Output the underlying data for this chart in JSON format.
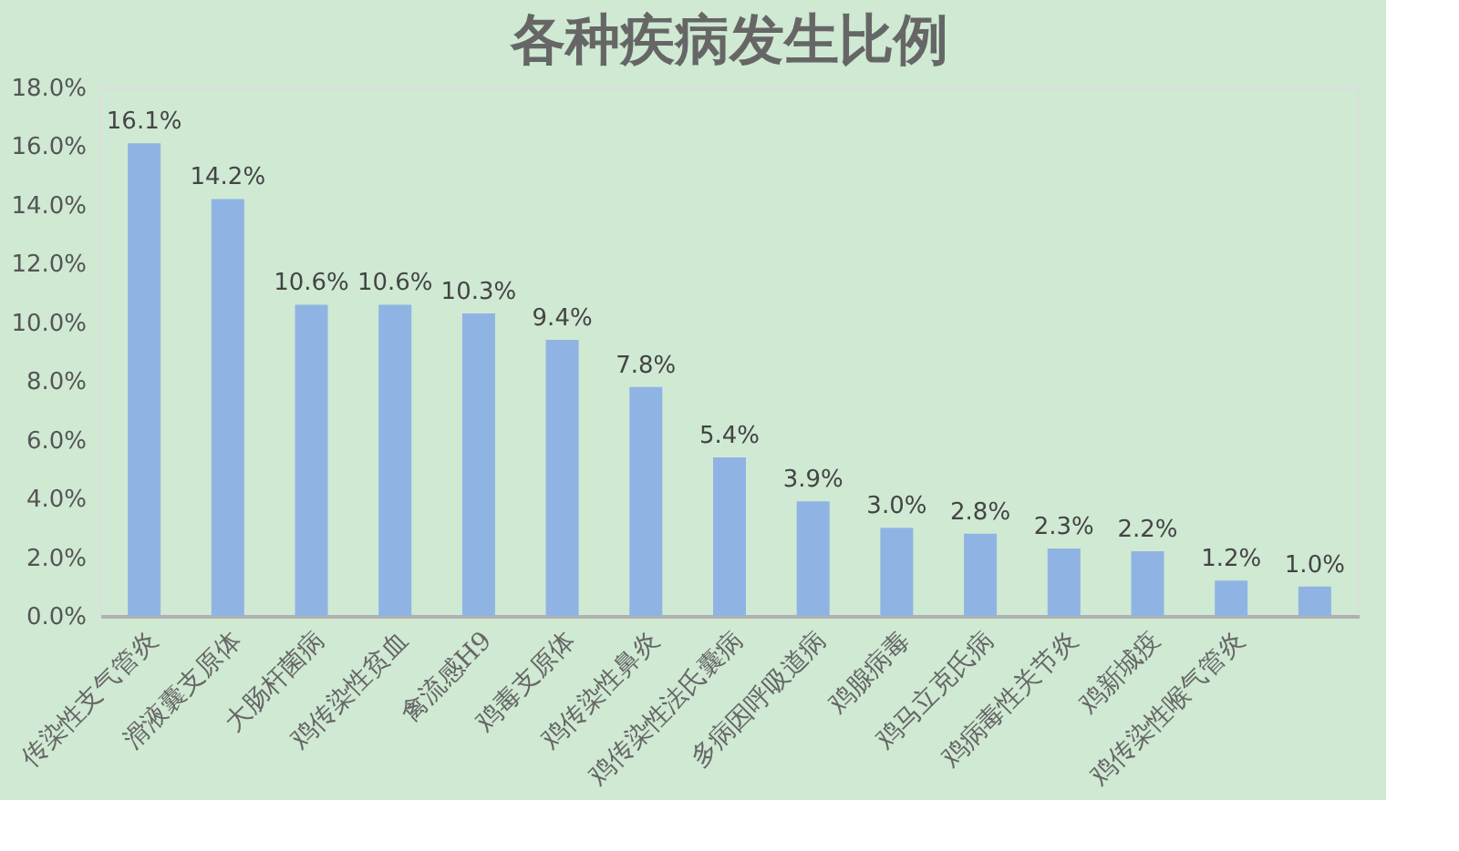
{
  "chart_data": {
    "type": "bar",
    "title": "各种疾病发生比例",
    "categories": [
      "传染性支气管炎",
      "滑液囊支原体",
      "大肠杆菌病",
      "鸡传染性贫血",
      "禽流感H9",
      "鸡毒支原体",
      "鸡传染性鼻炎",
      "鸡传染性法氏囊病",
      "多病因呼吸道病",
      "鸡腺病毒",
      "鸡马立克氏病",
      "鸡病毒性关节炎",
      "鸡新城疫",
      "鸡传染性喉气管炎",
      null
    ],
    "values": [
      16.1,
      14.2,
      10.6,
      10.6,
      10.3,
      9.4,
      7.8,
      5.4,
      3.9,
      3.0,
      2.8,
      2.3,
      2.2,
      1.2,
      1.0
    ],
    "value_labels": [
      "16.1%",
      "14.2%",
      "10.6%",
      "10.6%",
      "10.3%",
      "9.4%",
      "7.8%",
      "5.4%",
      "3.9%",
      "3.0%",
      "2.8%",
      "2.3%",
      "2.2%",
      "1.2%",
      "1.0%"
    ],
    "color": "#8fb4e3",
    "ylim": [
      0,
      18
    ],
    "yticks": [
      {
        "value": 0,
        "label": "0.0%"
      },
      {
        "value": 2,
        "label": "2.0%"
      },
      {
        "value": 4,
        "label": "4.0%"
      },
      {
        "value": 6,
        "label": "6.0%"
      },
      {
        "value": 8,
        "label": "8.0%"
      },
      {
        "value": 10,
        "label": "10.0%"
      },
      {
        "value": 12,
        "label": "12.0%"
      },
      {
        "value": 14,
        "label": "14.0%"
      },
      {
        "value": 16,
        "label": "16.0%"
      },
      {
        "value": 18,
        "label": "18.0%"
      }
    ],
    "grid": false
  }
}
